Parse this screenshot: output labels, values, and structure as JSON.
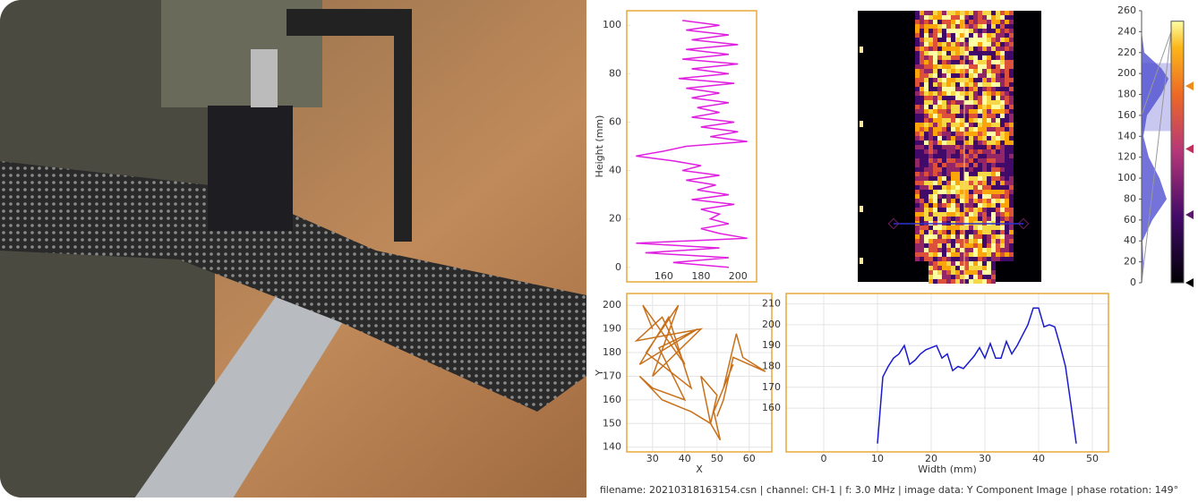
{
  "chart_data": [
    {
      "type": "line",
      "ylabel": "Height (mm)",
      "xlim": [
        140,
        210
      ],
      "xticks": [
        160,
        180,
        200
      ],
      "ylim": [
        -6,
        106
      ],
      "yticks": [
        0,
        20,
        40,
        60,
        80,
        100
      ],
      "grid": false,
      "series": [
        {
          "color": "#e020e0",
          "x": [
            170,
            190,
            172,
            195,
            175,
            200,
            172,
            195,
            170,
            200,
            175,
            195,
            168,
            198,
            172,
            190,
            175,
            195,
            178,
            190,
            175,
            198,
            180,
            200,
            185,
            205,
            172,
            160,
            145,
            165,
            180,
            170,
            190,
            172,
            188,
            178,
            195,
            175,
            198,
            180,
            190,
            185,
            195,
            180,
            190,
            205,
            145,
            190,
            150,
            195,
            165,
            195
          ],
          "y": [
            102,
            100,
            98,
            96,
            94,
            92,
            90,
            88,
            86,
            84,
            82,
            80,
            78,
            76,
            74,
            72,
            70,
            68,
            66,
            64,
            62,
            60,
            58,
            56,
            54,
            52,
            50,
            48,
            46,
            44,
            42,
            40,
            38,
            36,
            34,
            32,
            30,
            28,
            26,
            24,
            22,
            20,
            18,
            16,
            14,
            12,
            10,
            8,
            6,
            4,
            2,
            0
          ]
        }
      ]
    },
    {
      "type": "line",
      "xlabel": "X",
      "ylabel": "Y",
      "xlim": [
        22,
        67
      ],
      "xticks": [
        30,
        40,
        50,
        60
      ],
      "ylim": [
        138,
        205
      ],
      "yticks": [
        140,
        150,
        160,
        170,
        180,
        190,
        200
      ],
      "grid": true,
      "series": [
        {
          "color": "#c8701a",
          "x": [
            30,
            27,
            40,
            33,
            25,
            45,
            30,
            38,
            28,
            42,
            35,
            26,
            44,
            32,
            40,
            30,
            26,
            33,
            42,
            48,
            50,
            45,
            48,
            51,
            49,
            55,
            52,
            56,
            58,
            65,
            55,
            52,
            50
          ],
          "y": [
            190,
            200,
            175,
            195,
            185,
            190,
            170,
            200,
            180,
            165,
            195,
            175,
            190,
            182,
            160,
            165,
            170,
            160,
            155,
            150,
            162,
            170,
            150,
            143,
            155,
            175,
            165,
            188,
            178,
            172,
            178,
            160,
            153
          ]
        }
      ]
    },
    {
      "type": "line",
      "xlabel": "Width (mm)",
      "xlim": [
        -7,
        53
      ],
      "xticks": [
        0,
        10,
        20,
        30,
        40,
        50
      ],
      "ylim": [
        139,
        215
      ],
      "yticks": [
        160,
        170,
        180,
        190,
        200,
        210
      ],
      "grid": true,
      "series": [
        {
          "color": "#1a1ad0",
          "x": [
            10,
            11,
            12,
            13,
            14,
            15,
            16,
            17,
            18,
            19,
            20,
            21,
            22,
            23,
            24,
            25,
            26,
            27,
            28,
            29,
            30,
            31,
            32,
            33,
            34,
            35,
            36,
            37,
            38,
            39,
            40,
            41,
            42,
            43,
            44,
            45,
            46,
            47
          ],
          "y": [
            143,
            175,
            180,
            184,
            186,
            190,
            181,
            183,
            186,
            188,
            189,
            190,
            184,
            186,
            178,
            180,
            179,
            182,
            185,
            189,
            184,
            191,
            184,
            184,
            192,
            186,
            190,
            195,
            200,
            208,
            208,
            199,
            200,
            199,
            190,
            180,
            162,
            143
          ]
        }
      ]
    },
    {
      "type": "colorbar",
      "ylim": [
        0,
        260
      ],
      "yticks": [
        0,
        20,
        40,
        60,
        80,
        100,
        120,
        140,
        160,
        180,
        200,
        220,
        240,
        260
      ],
      "markers": [
        0,
        65,
        128,
        188
      ],
      "marker_colors": [
        "#000000",
        "#5c1a6e",
        "#c0305a",
        "#f08c1a"
      ]
    }
  ],
  "footer": "filename: 20210318163154.csn | channel: CH-1 | f: 3.0 MHz | image data: Y Component Image | phase rotation: 149°"
}
